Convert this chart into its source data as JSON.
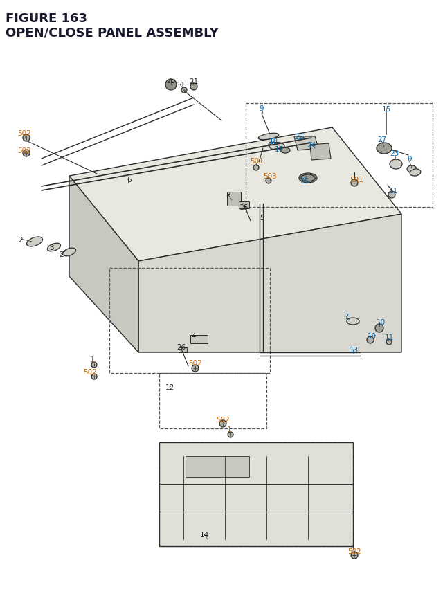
{
  "title_line1": "FIGURE 163",
  "title_line2": "OPEN/CLOSE PANEL ASSEMBLY",
  "title_color": "#1a1a2e",
  "title_fontsize": 13,
  "bg_color": "#ffffff",
  "diagram_color": "#2c2c2c",
  "orange_color": "#cc6600",
  "blue_color": "#0066aa",
  "label_fontsize": 7.5
}
